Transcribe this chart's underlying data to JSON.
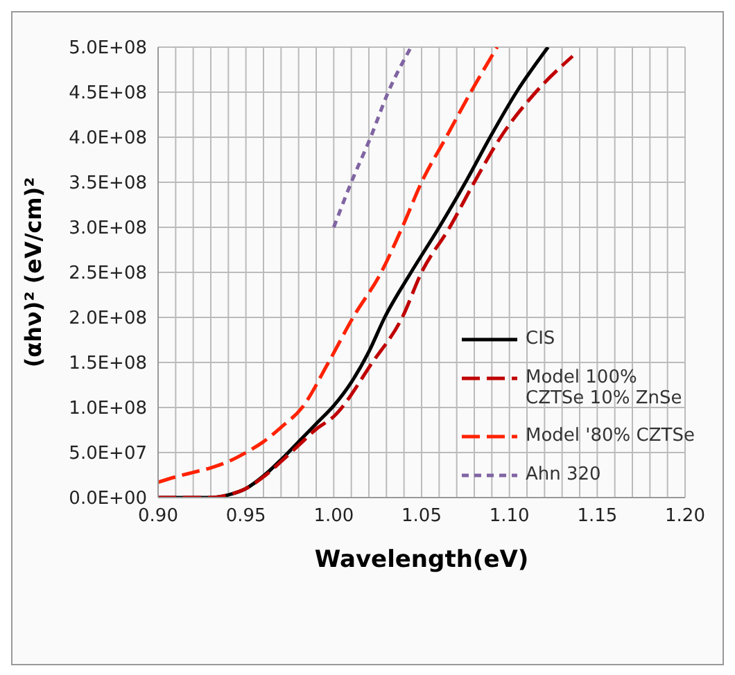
{
  "chart_data": {
    "type": "line",
    "xlabel": "Wavelength(eV)",
    "ylabel": "(αhν)² (eV/cm)²",
    "xlim": [
      0.9,
      1.2
    ],
    "xticks": [
      {
        "value": 0.9,
        "label": "0.90"
      },
      {
        "value": 0.91,
        "label": null
      },
      {
        "value": 0.92,
        "label": null
      },
      {
        "value": 0.93,
        "label": null
      },
      {
        "value": 0.94,
        "label": null
      },
      {
        "value": 0.95,
        "label": "0.95"
      },
      {
        "value": 0.96,
        "label": null
      },
      {
        "value": 0.97,
        "label": null
      },
      {
        "value": 0.98,
        "label": null
      },
      {
        "value": 0.99,
        "label": null
      },
      {
        "value": 1.0,
        "label": "1.00"
      },
      {
        "value": 1.01,
        "label": null
      },
      {
        "value": 1.02,
        "label": null
      },
      {
        "value": 1.03,
        "label": null
      },
      {
        "value": 1.04,
        "label": null
      },
      {
        "value": 1.05,
        "label": "1.05"
      },
      {
        "value": 1.06,
        "label": null
      },
      {
        "value": 1.07,
        "label": null
      },
      {
        "value": 1.08,
        "label": null
      },
      {
        "value": 1.09,
        "label": null
      },
      {
        "value": 1.1,
        "label": "1.10"
      },
      {
        "value": 1.11,
        "label": null
      },
      {
        "value": 1.12,
        "label": null
      },
      {
        "value": 1.13,
        "label": null
      },
      {
        "value": 1.14,
        "label": null
      },
      {
        "value": 1.15,
        "label": "1.15"
      },
      {
        "value": 1.16,
        "label": null
      },
      {
        "value": 1.17,
        "label": null
      },
      {
        "value": 1.18,
        "label": null
      },
      {
        "value": 1.19,
        "label": null
      },
      {
        "value": 1.2,
        "label": "1.20"
      }
    ],
    "ylim": [
      0,
      500000000
    ],
    "yticks": [
      {
        "value": 0,
        "label": "0.0E+00"
      },
      {
        "value": 50000000,
        "label": "5.0E+07"
      },
      {
        "value": 100000000,
        "label": "1.0E+08"
      },
      {
        "value": 150000000,
        "label": "1.5E+08"
      },
      {
        "value": 200000000,
        "label": "2.0E+08"
      },
      {
        "value": 250000000,
        "label": "2.5E+08"
      },
      {
        "value": 300000000,
        "label": "3.0E+08"
      },
      {
        "value": 350000000,
        "label": "3.5E+08"
      },
      {
        "value": 400000000,
        "label": "4.0E+08"
      },
      {
        "value": 450000000,
        "label": "4.5E+08"
      },
      {
        "value": 500000000,
        "label": "5.0E+08"
      }
    ],
    "grid": true,
    "legend": "right",
    "marker": "none",
    "series": [
      {
        "name": "CIS",
        "color": "#000000",
        "line_style": "solid",
        "x": [
          0.9,
          0.93,
          0.94,
          0.95,
          0.96,
          0.97,
          0.98,
          0.99,
          1.0,
          1.01,
          1.02,
          1.029,
          1.044,
          1.06,
          1.075,
          1.089,
          1.104,
          1.122
        ],
        "values": [
          0,
          0,
          3000000,
          10000000,
          24000000,
          42000000,
          62000000,
          82000000,
          102000000,
          128000000,
          162000000,
          200000000,
          250000000,
          300000000,
          350000000,
          400000000,
          450000000,
          500000000
        ]
      },
      {
        "name": "Model 100% CZTSe 10% ZnSe",
        "color": "#c00000",
        "line_style": "dashed",
        "x": [
          0.9,
          0.93,
          0.94,
          0.95,
          0.96,
          0.97,
          0.98,
          0.99,
          1.0,
          1.022,
          1.039,
          1.05,
          1.066,
          1.08,
          1.095,
          1.115,
          1.136
        ],
        "values": [
          0,
          0,
          3000000,
          10000000,
          23000000,
          40000000,
          58000000,
          76000000,
          90000000,
          150000000,
          200000000,
          250000000,
          300000000,
          350000000,
          400000000,
          450000000,
          490000000
        ]
      },
      {
        "name": "Model '80% CZTSe",
        "color": "#ff2200",
        "line_style": "dashed",
        "x": [
          0.9,
          0.91,
          0.92,
          0.93,
          0.94,
          0.95,
          0.96,
          0.97,
          0.982,
          0.997,
          1.011,
          1.027,
          1.039,
          1.05,
          1.064,
          1.078,
          1.093
        ],
        "values": [
          17000000,
          23000000,
          28000000,
          33000000,
          40000000,
          50000000,
          62000000,
          78000000,
          100000000,
          150000000,
          200000000,
          250000000,
          300000000,
          350000000,
          400000000,
          450000000,
          500000000
        ]
      },
      {
        "name": "Ahn 320",
        "color": "#8064a2",
        "line_style": "dotted",
        "x": [
          1.0,
          1.01,
          1.021,
          1.031,
          1.044
        ],
        "values": [
          300000000,
          350000000,
          400000000,
          450000000,
          500000000
        ]
      }
    ]
  }
}
